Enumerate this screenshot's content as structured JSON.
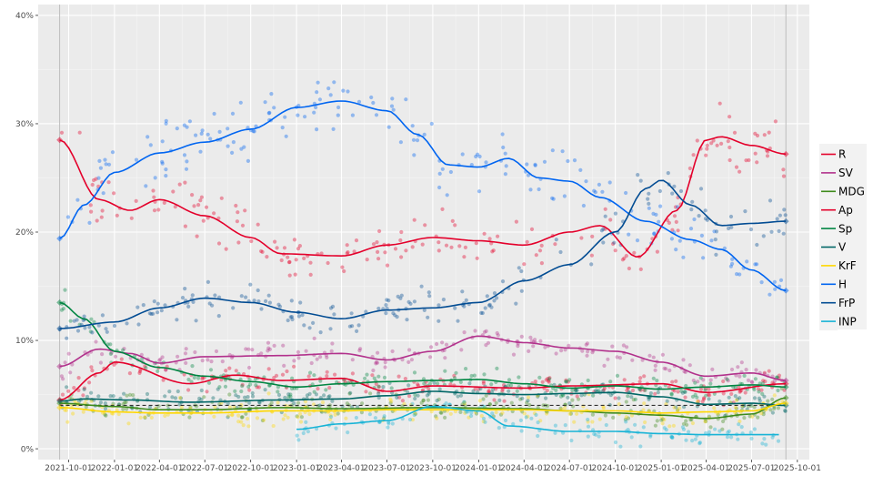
{
  "chart_data": {
    "type": "scatter",
    "title": "",
    "xlabel": "",
    "ylabel": "",
    "x_start": "2021-09-13",
    "x_end": "2025-09-08",
    "xlim": [
      "2021-08-01",
      "2025-10-25"
    ],
    "ylim": [
      -1,
      41
    ],
    "y_ticks": [
      0,
      10,
      20,
      30,
      40
    ],
    "y_tick_labels": [
      "0%",
      "10%",
      "20%",
      "30%",
      "40%"
    ],
    "x_ticks": [
      "2021-10-01",
      "2022-01-01",
      "2022-04-01",
      "2022-07-01",
      "2022-10-01",
      "2023-01-01",
      "2023-04-01",
      "2023-07-01",
      "2023-10-01",
      "2024-01-01",
      "2024-04-01",
      "2024-07-01",
      "2024-10-01",
      "2025-01-01",
      "2025-04-01",
      "2025-07-01",
      "2025-10-01"
    ],
    "x_tick_labels": [
      "2021-10-01",
      "2022-01-01",
      "2022-04-01",
      "2022-07-01",
      "2022-10-01",
      "2023-01-01",
      "2023-04-01",
      "2023-07-01",
      "2023-10-01",
      "2024-01-01",
      "2024-04-01",
      "2024-07-01",
      "2024-10-01",
      "2025-01-01",
      "2025-04-01",
      "2025-07-01",
      "2025-10-01"
    ],
    "threshold": 4,
    "legend_position": "right",
    "grid": true,
    "series": [
      {
        "name": "R",
        "color": "#e4002b",
        "points": [
          [
            "2021-09-13",
            4.5
          ],
          [
            "2021-12-01",
            7
          ],
          [
            "2022-01-01",
            8
          ],
          [
            "2022-06-01",
            6
          ],
          [
            "2022-09-01",
            6.8
          ],
          [
            "2022-12-01",
            6.3
          ],
          [
            "2023-04-01",
            6.5
          ],
          [
            "2023-07-01",
            5.3
          ],
          [
            "2023-10-01",
            5.8
          ],
          [
            "2024-04-01",
            5.6
          ],
          [
            "2024-07-01",
            5.8
          ],
          [
            "2025-01-01",
            6
          ],
          [
            "2025-04-01",
            5.2
          ],
          [
            "2025-09-08",
            6
          ]
        ]
      },
      {
        "name": "SV",
        "color": "#b2318c",
        "points": [
          [
            "2021-09-13",
            7.6
          ],
          [
            "2021-12-01",
            9.2
          ],
          [
            "2022-02-01",
            8.8
          ],
          [
            "2022-04-01",
            7.9
          ],
          [
            "2022-07-01",
            8.5
          ],
          [
            "2022-12-01",
            8.6
          ],
          [
            "2023-04-01",
            8.8
          ],
          [
            "2023-07-01",
            8.2
          ],
          [
            "2023-10-01",
            9
          ],
          [
            "2024-01-01",
            10.4
          ],
          [
            "2024-04-01",
            9.8
          ],
          [
            "2024-07-01",
            9.3
          ],
          [
            "2024-10-01",
            9
          ],
          [
            "2025-01-01",
            8
          ],
          [
            "2025-04-01",
            6.7
          ],
          [
            "2025-07-01",
            7
          ],
          [
            "2025-09-08",
            6.3
          ]
        ]
      },
      {
        "name": "MDG",
        "color": "#3e8b1c",
        "points": [
          [
            "2021-09-13",
            4.2
          ],
          [
            "2022-01-01",
            3.9
          ],
          [
            "2022-04-01",
            3.6
          ],
          [
            "2022-07-01",
            3.6
          ],
          [
            "2022-12-01",
            3.8
          ],
          [
            "2023-04-01",
            3.7
          ],
          [
            "2023-10-01",
            3.8
          ],
          [
            "2024-04-01",
            3.7
          ],
          [
            "2024-07-01",
            3.5
          ],
          [
            "2024-10-01",
            3.3
          ],
          [
            "2025-01-01",
            3.1
          ],
          [
            "2025-04-01",
            2.8
          ],
          [
            "2025-07-01",
            3.2
          ],
          [
            "2025-09-08",
            4.7
          ]
        ]
      },
      {
        "name": "Ap",
        "color": "#e4002b",
        "points": [
          [
            "2021-09-13",
            28.5
          ],
          [
            "2021-12-01",
            23
          ],
          [
            "2022-02-01",
            22
          ],
          [
            "2022-04-01",
            23
          ],
          [
            "2022-07-01",
            21.5
          ],
          [
            "2022-10-01",
            19.5
          ],
          [
            "2022-12-01",
            18
          ],
          [
            "2023-04-01",
            17.8
          ],
          [
            "2023-07-01",
            18.8
          ],
          [
            "2023-10-01",
            19.5
          ],
          [
            "2024-01-01",
            19.2
          ],
          [
            "2024-04-01",
            18.8
          ],
          [
            "2024-07-01",
            20
          ],
          [
            "2024-09-01",
            20.6
          ],
          [
            "2024-11-15",
            17.7
          ],
          [
            "2025-02-01",
            22
          ],
          [
            "2025-04-01",
            28.5
          ],
          [
            "2025-05-01",
            28.8
          ],
          [
            "2025-07-01",
            28
          ],
          [
            "2025-09-08",
            27.2
          ]
        ]
      },
      {
        "name": "Sp",
        "color": "#008542",
        "points": [
          [
            "2021-09-13",
            13.5
          ],
          [
            "2021-11-01",
            12
          ],
          [
            "2022-01-01",
            9
          ],
          [
            "2022-04-01",
            7.5
          ],
          [
            "2022-07-01",
            6.7
          ],
          [
            "2022-10-01",
            6.2
          ],
          [
            "2023-01-01",
            5.7
          ],
          [
            "2023-04-01",
            6
          ],
          [
            "2023-07-01",
            6.2
          ],
          [
            "2023-10-01",
            6.3
          ],
          [
            "2024-01-01",
            6.4
          ],
          [
            "2024-04-01",
            6
          ],
          [
            "2024-07-01",
            5.6
          ],
          [
            "2024-10-01",
            5.8
          ],
          [
            "2025-01-01",
            5.5
          ],
          [
            "2025-04-01",
            5.7
          ],
          [
            "2025-07-01",
            5.9
          ],
          [
            "2025-09-08",
            5.7
          ]
        ]
      },
      {
        "name": "V",
        "color": "#006666",
        "points": [
          [
            "2021-09-13",
            4.4
          ],
          [
            "2021-11-01",
            4.6
          ],
          [
            "2022-02-01",
            4.5
          ],
          [
            "2022-06-01",
            4.3
          ],
          [
            "2022-12-01",
            4.5
          ],
          [
            "2023-04-01",
            4.6
          ],
          [
            "2023-07-01",
            4.9
          ],
          [
            "2023-10-01",
            5.3
          ],
          [
            "2024-01-01",
            5.1
          ],
          [
            "2024-04-01",
            5
          ],
          [
            "2024-07-01",
            5.1
          ],
          [
            "2024-10-01",
            5.2
          ],
          [
            "2025-01-01",
            4.8
          ],
          [
            "2025-04-01",
            4.1
          ],
          [
            "2025-07-01",
            4.2
          ],
          [
            "2025-09-08",
            4
          ]
        ]
      },
      {
        "name": "KrF",
        "color": "#ffd700",
        "points": [
          [
            "2021-09-13",
            3.8
          ],
          [
            "2022-01-01",
            3.4
          ],
          [
            "2022-04-01",
            3.3
          ],
          [
            "2022-07-01",
            3.3
          ],
          [
            "2022-12-01",
            3.5
          ],
          [
            "2023-04-01",
            3.5
          ],
          [
            "2023-07-01",
            3.6
          ],
          [
            "2023-10-01",
            3.6
          ],
          [
            "2024-04-01",
            3.6
          ],
          [
            "2024-07-01",
            3.5
          ],
          [
            "2024-10-01",
            3.5
          ],
          [
            "2025-01-01",
            3.3
          ],
          [
            "2025-04-01",
            3.4
          ],
          [
            "2025-07-01",
            3.5
          ],
          [
            "2025-09-08",
            4.2
          ]
        ]
      },
      {
        "name": "H",
        "color": "#0065f1",
        "points": [
          [
            "2021-09-13",
            19.4
          ],
          [
            "2021-11-01",
            22.5
          ],
          [
            "2022-01-01",
            25.5
          ],
          [
            "2022-04-01",
            27.3
          ],
          [
            "2022-07-01",
            28.3
          ],
          [
            "2022-10-01",
            29.5
          ],
          [
            "2023-01-01",
            31.5
          ],
          [
            "2023-04-01",
            32.1
          ],
          [
            "2023-07-01",
            31.2
          ],
          [
            "2023-09-01",
            29
          ],
          [
            "2023-11-01",
            26.2
          ],
          [
            "2024-01-01",
            26
          ],
          [
            "2024-03-01",
            26.8
          ],
          [
            "2024-05-01",
            25
          ],
          [
            "2024-07-01",
            24.7
          ],
          [
            "2024-09-01",
            23.2
          ],
          [
            "2024-12-01",
            21
          ],
          [
            "2025-03-01",
            19.3
          ],
          [
            "2025-05-01",
            18.4
          ],
          [
            "2025-07-01",
            16.5
          ],
          [
            "2025-09-08",
            14.6
          ]
        ]
      },
      {
        "name": "FrP",
        "color": "#024c93",
        "points": [
          [
            "2021-09-13",
            11.1
          ],
          [
            "2022-01-01",
            11.7
          ],
          [
            "2022-04-01",
            13
          ],
          [
            "2022-07-01",
            13.9
          ],
          [
            "2022-10-01",
            13.5
          ],
          [
            "2023-01-01",
            12.6
          ],
          [
            "2023-04-01",
            12
          ],
          [
            "2023-07-01",
            12.8
          ],
          [
            "2023-10-01",
            13
          ],
          [
            "2024-01-01",
            13.5
          ],
          [
            "2024-04-01",
            15.5
          ],
          [
            "2024-07-01",
            17
          ],
          [
            "2024-10-01",
            20
          ],
          [
            "2024-12-01",
            24
          ],
          [
            "2025-01-01",
            24.8
          ],
          [
            "2025-03-01",
            22.5
          ],
          [
            "2025-05-01",
            20.6
          ],
          [
            "2025-07-01",
            20.8
          ],
          [
            "2025-09-08",
            21
          ]
        ]
      },
      {
        "name": "INP",
        "color": "#17b3d6",
        "points": [
          [
            "2023-01-01",
            1.8
          ],
          [
            "2023-04-01",
            2.3
          ],
          [
            "2023-07-01",
            2.6
          ],
          [
            "2023-10-01",
            3.9
          ],
          [
            "2024-01-01",
            3.5
          ],
          [
            "2024-03-01",
            2.1
          ],
          [
            "2024-07-01",
            1.6
          ],
          [
            "2024-10-01",
            1.6
          ],
          [
            "2025-01-01",
            1.4
          ],
          [
            "2025-04-01",
            1.3
          ],
          [
            "2025-08-25",
            1.3
          ]
        ]
      }
    ]
  }
}
